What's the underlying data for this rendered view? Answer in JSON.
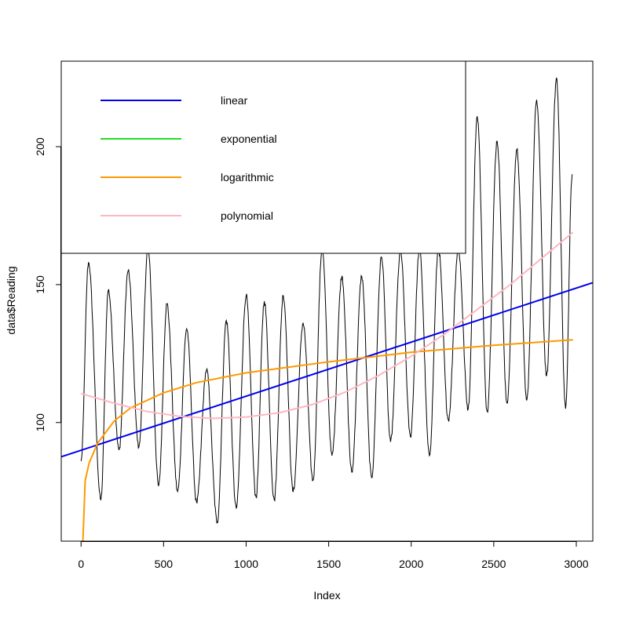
{
  "chart_data": {
    "type": "line",
    "title": "",
    "xlabel": "Index",
    "ylabel": "data$Reading",
    "xlim": [
      -120,
      3100
    ],
    "ylim": [
      57,
      231
    ],
    "x_ticks": [
      0,
      500,
      1000,
      1500,
      2000,
      2500,
      3000
    ],
    "y_ticks": [
      100,
      150,
      200
    ],
    "legend": {
      "placement": "top-left",
      "entries": [
        {
          "label": "linear",
          "color": "#0000ee"
        },
        {
          "label": "exponential",
          "color": "#22dd22"
        },
        {
          "label": "logarithmic",
          "color": "#ff9900"
        },
        {
          "label": "polynomial",
          "color": "#ffb6c1"
        }
      ]
    },
    "raw_series": {
      "name": "Reading",
      "color": "#000000",
      "n": 2975,
      "peaks": [
        {
          "x": 45,
          "y": 158
        },
        {
          "x": 165,
          "y": 148
        },
        {
          "x": 285,
          "y": 155
        },
        {
          "x": 405,
          "y": 163
        },
        {
          "x": 520,
          "y": 143
        },
        {
          "x": 640,
          "y": 134
        },
        {
          "x": 760,
          "y": 119
        },
        {
          "x": 880,
          "y": 137
        },
        {
          "x": 1000,
          "y": 146
        },
        {
          "x": 1110,
          "y": 144
        },
        {
          "x": 1225,
          "y": 146
        },
        {
          "x": 1345,
          "y": 136
        },
        {
          "x": 1460,
          "y": 163
        },
        {
          "x": 1580,
          "y": 153
        },
        {
          "x": 1700,
          "y": 153
        },
        {
          "x": 1820,
          "y": 160
        },
        {
          "x": 1935,
          "y": 162
        },
        {
          "x": 2050,
          "y": 163
        },
        {
          "x": 2165,
          "y": 163
        },
        {
          "x": 2285,
          "y": 163
        },
        {
          "x": 2400,
          "y": 211
        },
        {
          "x": 2520,
          "y": 202
        },
        {
          "x": 2640,
          "y": 199
        },
        {
          "x": 2760,
          "y": 217
        },
        {
          "x": 2880,
          "y": 225
        }
      ],
      "troughs": [
        {
          "x": 0,
          "y": 86
        },
        {
          "x": 120,
          "y": 72
        },
        {
          "x": 230,
          "y": 90
        },
        {
          "x": 350,
          "y": 91
        },
        {
          "x": 470,
          "y": 77
        },
        {
          "x": 585,
          "y": 75
        },
        {
          "x": 700,
          "y": 71
        },
        {
          "x": 825,
          "y": 64
        },
        {
          "x": 940,
          "y": 69
        },
        {
          "x": 1060,
          "y": 73
        },
        {
          "x": 1170,
          "y": 72
        },
        {
          "x": 1285,
          "y": 75
        },
        {
          "x": 1405,
          "y": 79
        },
        {
          "x": 1520,
          "y": 88
        },
        {
          "x": 1640,
          "y": 82
        },
        {
          "x": 1760,
          "y": 80
        },
        {
          "x": 1875,
          "y": 93
        },
        {
          "x": 1995,
          "y": 95
        },
        {
          "x": 2110,
          "y": 88
        },
        {
          "x": 2225,
          "y": 101
        },
        {
          "x": 2345,
          "y": 105
        },
        {
          "x": 2460,
          "y": 104
        },
        {
          "x": 2580,
          "y": 107
        },
        {
          "x": 2700,
          "y": 108
        },
        {
          "x": 2820,
          "y": 117
        },
        {
          "x": 2935,
          "y": 105
        },
        {
          "x": 2975,
          "y": 190
        }
      ]
    },
    "fits": [
      {
        "name": "linear",
        "color": "#0000ee",
        "points": [
          [
            -120,
            87.6
          ],
          [
            3100,
            150.7
          ]
        ]
      },
      {
        "name": "logarithmic",
        "color": "#ff9900",
        "points": [
          [
            10,
            55
          ],
          [
            25,
            79
          ],
          [
            50,
            85.5
          ],
          [
            100,
            92.5
          ],
          [
            200,
            100.5
          ],
          [
            300,
            105.3
          ],
          [
            500,
            110.8
          ],
          [
            700,
            114.5
          ],
          [
            1000,
            118
          ],
          [
            1500,
            122
          ],
          [
            2000,
            125.5
          ],
          [
            2500,
            128
          ],
          [
            2980,
            130
          ]
        ]
      },
      {
        "name": "polynomial",
        "color": "#ffb6c1",
        "points": [
          [
            0,
            110.5
          ],
          [
            200,
            107
          ],
          [
            400,
            104
          ],
          [
            600,
            102.2
          ],
          [
            800,
            101.5
          ],
          [
            1000,
            102
          ],
          [
            1200,
            103.5
          ],
          [
            1400,
            106.5
          ],
          [
            1600,
            111
          ],
          [
            1800,
            117
          ],
          [
            2000,
            124
          ],
          [
            2200,
            132
          ],
          [
            2400,
            141
          ],
          [
            2600,
            150
          ],
          [
            2800,
            160
          ],
          [
            2980,
            169
          ]
        ]
      }
    ]
  }
}
